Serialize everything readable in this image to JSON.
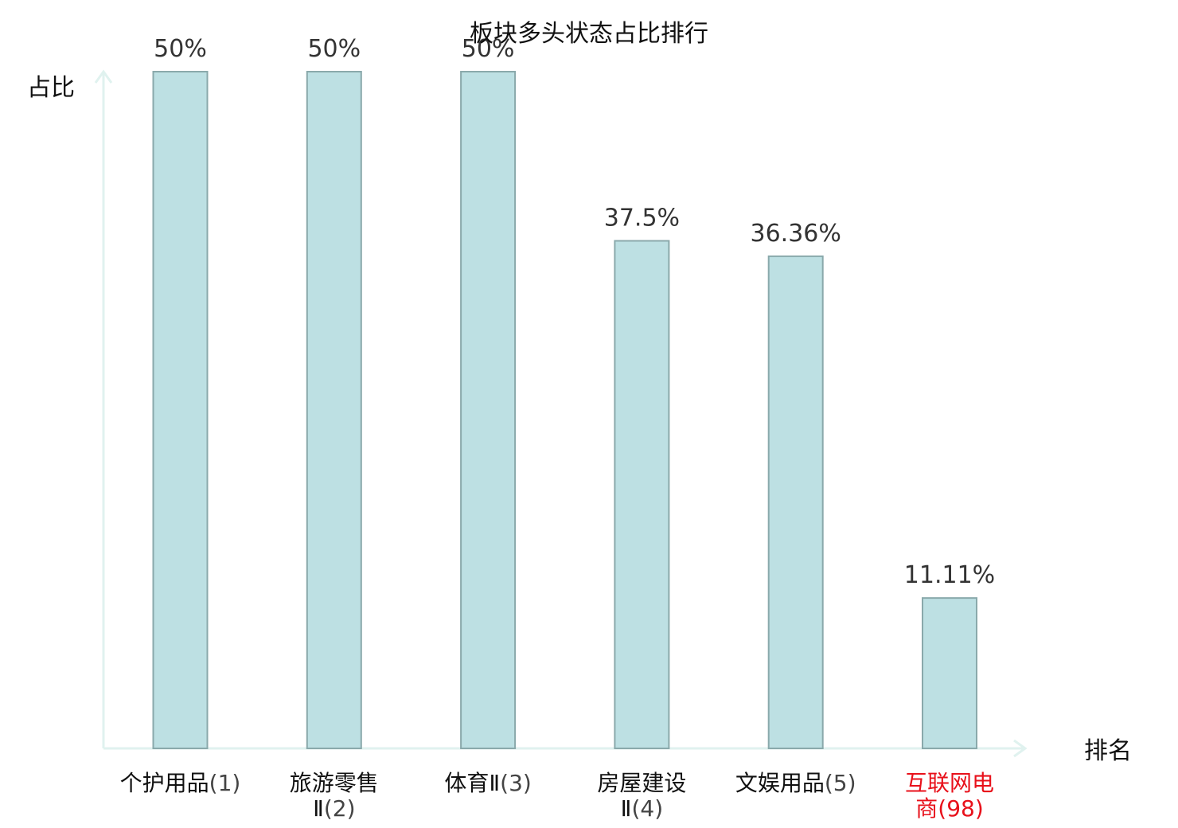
{
  "chart_data": {
    "type": "bar",
    "title": "板块多头状态占比排行",
    "ylabel": "占比",
    "xlabel": "排名",
    "categories": [
      {
        "name": "个护用品",
        "rank": "(1)",
        "lines": [
          [
            {
              "t": "个护用品",
              "k": "name"
            },
            {
              "t": "(1)",
              "k": "rank"
            }
          ]
        ]
      },
      {
        "name": "旅游零售Ⅱ",
        "rank": "(2)",
        "lines": [
          [
            {
              "t": "旅游零售",
              "k": "name"
            }
          ],
          [
            {
              "t": "Ⅱ",
              "k": "name"
            },
            {
              "t": "(2)",
              "k": "rank"
            }
          ]
        ]
      },
      {
        "name": "体育Ⅱ",
        "rank": "(3)",
        "lines": [
          [
            {
              "t": "体育Ⅱ",
              "k": "name"
            },
            {
              "t": "(3)",
              "k": "rank"
            }
          ]
        ]
      },
      {
        "name": "房屋建设Ⅱ",
        "rank": "(4)",
        "lines": [
          [
            {
              "t": "房屋建设",
              "k": "name"
            }
          ],
          [
            {
              "t": "Ⅱ",
              "k": "name"
            },
            {
              "t": "(4)",
              "k": "rank"
            }
          ]
        ]
      },
      {
        "name": "文娱用品",
        "rank": "(5)",
        "lines": [
          [
            {
              "t": "文娱用品",
              "k": "name"
            },
            {
              "t": "(5)",
              "k": "rank"
            }
          ]
        ]
      },
      {
        "name": "互联网电商",
        "rank": "(98)",
        "lines": [
          [
            {
              "t": "互联网电",
              "k": "name"
            }
          ],
          [
            {
              "t": "商",
              "k": "name"
            },
            {
              "t": "(98)",
              "k": "rank"
            }
          ]
        ],
        "highlight": true
      }
    ],
    "values": [
      50,
      50,
      50,
      37.5,
      36.36,
      11.11
    ],
    "value_labels": [
      "50%",
      "50%",
      "50%",
      "37.5%",
      "36.36%",
      "11.11%"
    ],
    "ylim": [
      0,
      50
    ],
    "grid": false,
    "legend": "none",
    "colors": {
      "bar_fill": "#bde0e3",
      "bar_stroke": "#8aa9ab",
      "axis": "#e0f2ef",
      "highlight_text": "#e8111b",
      "label_text": "#111111",
      "rank_text": "#444444",
      "value_text": "#333333"
    }
  }
}
